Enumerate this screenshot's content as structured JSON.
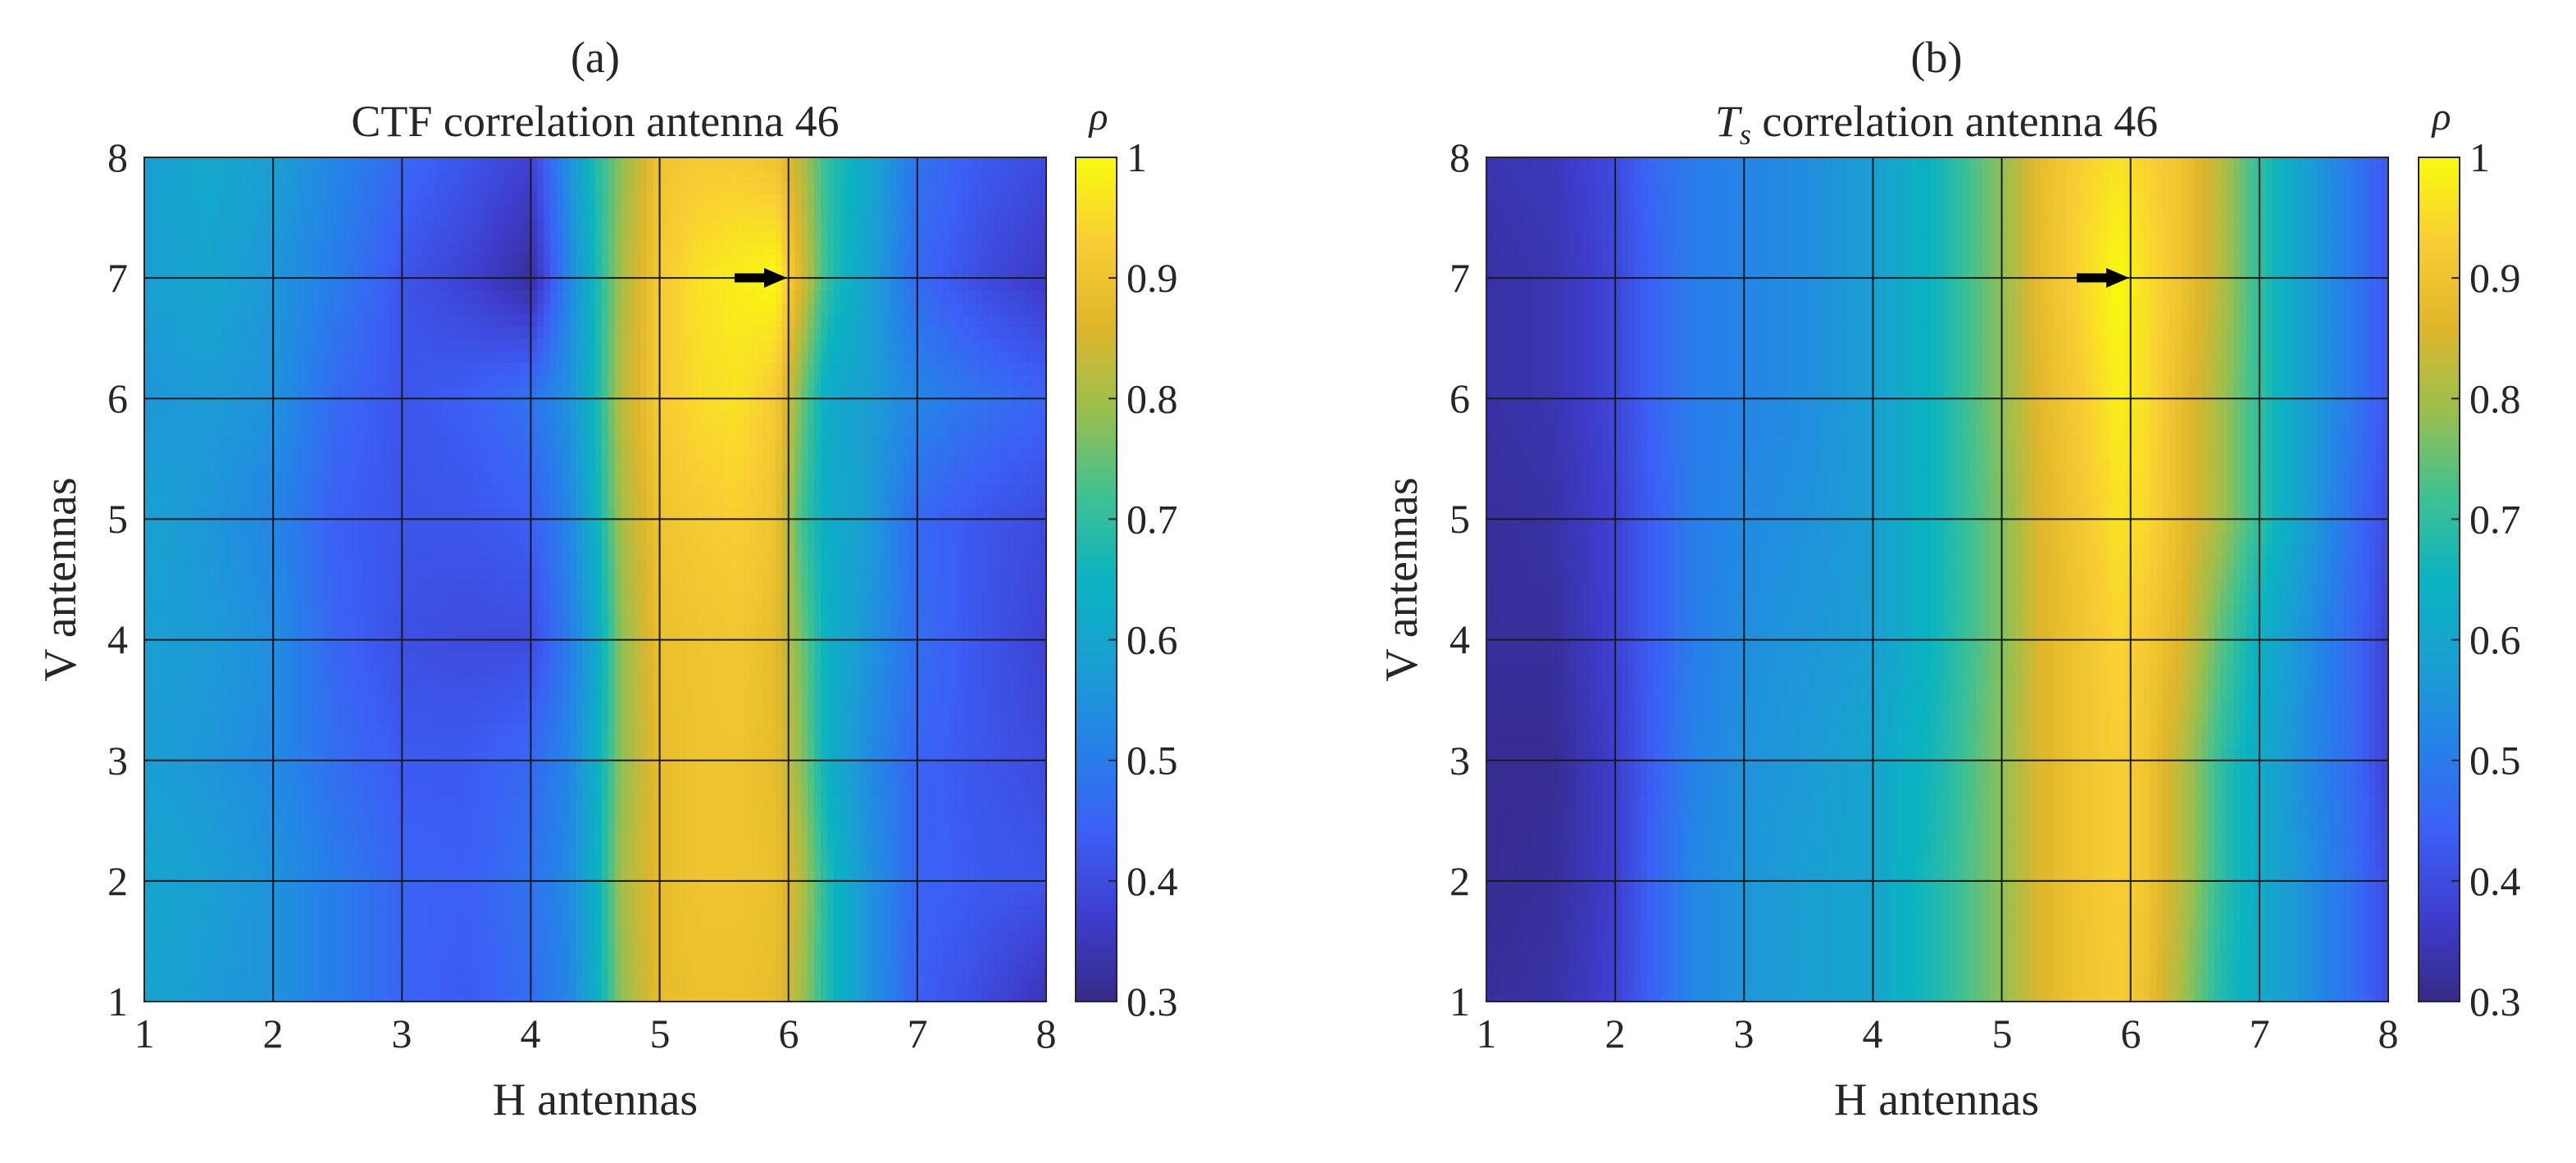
{
  "chart_data": [
    {
      "type": "heatmap",
      "label": "(a)",
      "title_main": "CTF correlation antenna 46",
      "title_sub": "",
      "xlabel": "H antennas",
      "ylabel": "V antennas",
      "x_ticks": [
        "1",
        "2",
        "3",
        "4",
        "5",
        "6",
        "7",
        "8"
      ],
      "y_ticks": [
        "1",
        "2",
        "3",
        "4",
        "5",
        "6",
        "7",
        "8"
      ],
      "xlim": [
        1,
        8
      ],
      "ylim": [
        1,
        8
      ],
      "grid": true,
      "colorbar": {
        "label": "ρ",
        "ticks": [
          "0.3",
          "0.4",
          "0.5",
          "0.6",
          "0.7",
          "0.8",
          "0.9",
          "1"
        ],
        "range": [
          0.3,
          1.0
        ],
        "colormap": "parula"
      },
      "reference_antenna": {
        "h": 6,
        "v": 7,
        "marker": "arrow"
      },
      "x_samples": [
        1,
        1.5,
        2,
        2.5,
        3,
        3.5,
        4,
        4.3,
        4.5,
        4.7,
        5,
        5.3,
        5.6,
        5.9,
        6.1,
        6.3,
        6.6,
        7,
        7.5,
        8
      ],
      "y_samples": [
        1,
        2,
        3,
        4,
        5,
        6,
        7,
        8
      ],
      "rho_rows": [
        [
          0.6,
          0.57,
          0.55,
          0.5,
          0.45,
          0.43,
          0.47,
          0.52,
          0.62,
          0.78,
          0.88,
          0.89,
          0.89,
          0.88,
          0.8,
          0.68,
          0.56,
          0.44,
          0.4,
          0.34
        ],
        [
          0.6,
          0.58,
          0.55,
          0.5,
          0.45,
          0.44,
          0.48,
          0.53,
          0.63,
          0.8,
          0.88,
          0.9,
          0.9,
          0.89,
          0.82,
          0.68,
          0.56,
          0.45,
          0.43,
          0.42
        ],
        [
          0.58,
          0.56,
          0.53,
          0.47,
          0.43,
          0.43,
          0.46,
          0.52,
          0.62,
          0.78,
          0.88,
          0.9,
          0.9,
          0.88,
          0.78,
          0.64,
          0.54,
          0.45,
          0.42,
          0.4
        ],
        [
          0.58,
          0.57,
          0.54,
          0.45,
          0.41,
          0.4,
          0.4,
          0.5,
          0.6,
          0.78,
          0.89,
          0.9,
          0.91,
          0.88,
          0.76,
          0.64,
          0.56,
          0.47,
          0.42,
          0.38
        ],
        [
          0.59,
          0.56,
          0.52,
          0.44,
          0.42,
          0.42,
          0.44,
          0.52,
          0.64,
          0.8,
          0.9,
          0.92,
          0.93,
          0.9,
          0.72,
          0.63,
          0.58,
          0.46,
          0.42,
          0.4
        ],
        [
          0.56,
          0.57,
          0.55,
          0.46,
          0.42,
          0.44,
          0.48,
          0.55,
          0.66,
          0.82,
          0.92,
          0.95,
          0.96,
          0.92,
          0.76,
          0.62,
          0.58,
          0.52,
          0.48,
          0.45
        ],
        [
          0.58,
          0.6,
          0.56,
          0.5,
          0.42,
          0.38,
          0.32,
          0.52,
          0.66,
          0.8,
          0.92,
          0.96,
          0.98,
          1.0,
          0.86,
          0.7,
          0.6,
          0.46,
          0.4,
          0.36
        ],
        [
          0.58,
          0.61,
          0.58,
          0.52,
          0.46,
          0.42,
          0.38,
          0.55,
          0.68,
          0.78,
          0.9,
          0.92,
          0.92,
          0.9,
          0.82,
          0.7,
          0.62,
          0.48,
          0.43,
          0.4
        ]
      ]
    },
    {
      "type": "heatmap",
      "label": "(b)",
      "title_main": "T",
      "title_sub": "s",
      "title_rest": " correlation antenna 46",
      "xlabel": "H antennas",
      "ylabel": "V antennas",
      "x_ticks": [
        "1",
        "2",
        "3",
        "4",
        "5",
        "6",
        "7",
        "8"
      ],
      "y_ticks": [
        "1",
        "2",
        "3",
        "4",
        "5",
        "6",
        "7",
        "8"
      ],
      "xlim": [
        1,
        8
      ],
      "ylim": [
        1,
        8
      ],
      "grid": true,
      "colorbar": {
        "label": "ρ",
        "ticks": [
          "0.3",
          "0.4",
          "0.5",
          "0.6",
          "0.7",
          "0.8",
          "0.9",
          "1"
        ],
        "range": [
          0.3,
          1.0
        ],
        "colormap": "parula"
      },
      "reference_antenna": {
        "h": 6,
        "v": 7,
        "marker": "arrow"
      },
      "x_samples": [
        1,
        1.5,
        2,
        2.3,
        2.6,
        3,
        3.5,
        4,
        4.5,
        5,
        5.3,
        5.6,
        5.9,
        6.1,
        6.4,
        6.7,
        7,
        7.3,
        7.7,
        8
      ],
      "y_samples": [
        1,
        2,
        3,
        4,
        5,
        6,
        7,
        8
      ],
      "rho_rows": [
        [
          0.32,
          0.33,
          0.38,
          0.45,
          0.52,
          0.56,
          0.58,
          0.6,
          0.68,
          0.78,
          0.86,
          0.9,
          0.92,
          0.9,
          0.8,
          0.68,
          0.62,
          0.56,
          0.48,
          0.4
        ],
        [
          0.31,
          0.32,
          0.37,
          0.45,
          0.52,
          0.56,
          0.58,
          0.6,
          0.68,
          0.78,
          0.86,
          0.9,
          0.93,
          0.91,
          0.82,
          0.7,
          0.62,
          0.56,
          0.48,
          0.4
        ],
        [
          0.31,
          0.31,
          0.37,
          0.44,
          0.51,
          0.55,
          0.57,
          0.6,
          0.67,
          0.78,
          0.86,
          0.9,
          0.93,
          0.91,
          0.82,
          0.7,
          0.62,
          0.55,
          0.47,
          0.38
        ],
        [
          0.32,
          0.32,
          0.38,
          0.44,
          0.5,
          0.54,
          0.56,
          0.58,
          0.66,
          0.77,
          0.86,
          0.9,
          0.94,
          0.92,
          0.86,
          0.74,
          0.64,
          0.56,
          0.47,
          0.38
        ],
        [
          0.32,
          0.33,
          0.38,
          0.44,
          0.5,
          0.53,
          0.55,
          0.58,
          0.66,
          0.77,
          0.86,
          0.91,
          0.96,
          0.95,
          0.88,
          0.8,
          0.7,
          0.6,
          0.48,
          0.4
        ],
        [
          0.33,
          0.34,
          0.39,
          0.45,
          0.5,
          0.52,
          0.54,
          0.58,
          0.66,
          0.78,
          0.87,
          0.92,
          0.98,
          0.96,
          0.88,
          0.8,
          0.7,
          0.6,
          0.5,
          0.42
        ],
        [
          0.33,
          0.34,
          0.39,
          0.45,
          0.5,
          0.52,
          0.54,
          0.58,
          0.66,
          0.78,
          0.88,
          0.94,
          1.0,
          0.96,
          0.9,
          0.82,
          0.7,
          0.6,
          0.5,
          0.42
        ],
        [
          0.34,
          0.35,
          0.4,
          0.46,
          0.5,
          0.52,
          0.54,
          0.58,
          0.66,
          0.78,
          0.88,
          0.93,
          0.96,
          0.94,
          0.9,
          0.82,
          0.7,
          0.6,
          0.5,
          0.42
        ]
      ]
    }
  ]
}
